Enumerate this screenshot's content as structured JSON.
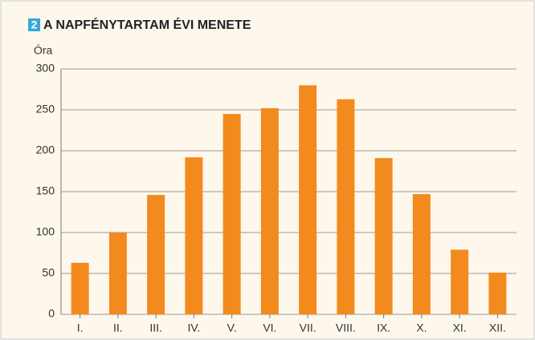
{
  "chart_data": {
    "type": "bar",
    "number": "2",
    "title": "A NAPFÉNYTARTAM ÉVI MENETE",
    "y_label": "Óra",
    "categories": [
      "I.",
      "II.",
      "III.",
      "IV.",
      "V.",
      "VI.",
      "VII.",
      "VIII.",
      "IX.",
      "X.",
      "XI.",
      "XII."
    ],
    "values": [
      63,
      100,
      146,
      192,
      245,
      252,
      280,
      263,
      191,
      147,
      79,
      51
    ],
    "color": "#f28a1e",
    "ylim": [
      0,
      300
    ],
    "yticks": [
      0,
      50,
      100,
      150,
      200,
      250,
      300
    ],
    "grid": true
  }
}
